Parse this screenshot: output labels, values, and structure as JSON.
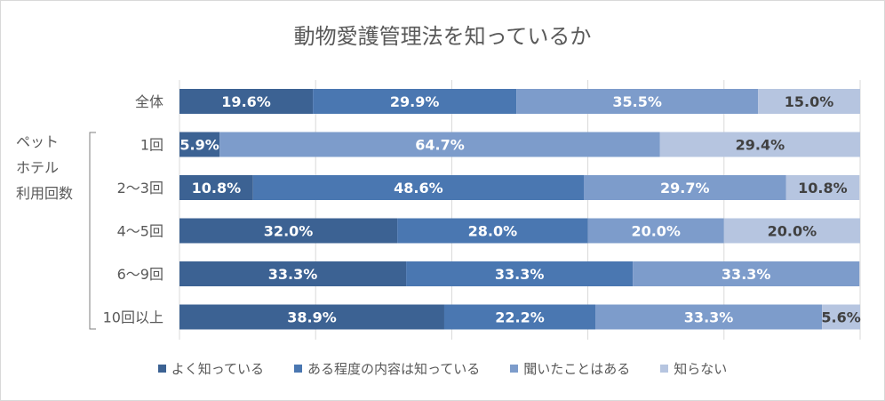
{
  "chart_data": {
    "type": "bar",
    "orientation": "horizontal",
    "stacked": "percent",
    "title": "動物愛護管理法を知っているか",
    "categories": [
      "全体",
      "1回",
      "2〜3回",
      "4〜5回",
      "6〜9回",
      "10回以上"
    ],
    "group_label": [
      "ペット",
      "ホテル",
      "利用回数"
    ],
    "series": [
      {
        "name": "よく知っている",
        "color": "#3c6293",
        "values": [
          19.6,
          5.9,
          10.8,
          32.0,
          33.3,
          38.9
        ],
        "labels": [
          "19.6%",
          "5.9%",
          "10.8%",
          "32.0%",
          "33.3%",
          "38.9%"
        ]
      },
      {
        "name": "ある程度の内容は知っている",
        "color": "#4a77b1",
        "values": [
          29.9,
          0,
          48.6,
          28.0,
          33.3,
          22.2
        ],
        "labels": [
          "29.9%",
          "",
          "48.6%",
          "28.0%",
          "33.3%",
          "22.2%"
        ]
      },
      {
        "name": "聞いたことはある",
        "color": "#7d9ccb",
        "values": [
          35.5,
          64.7,
          29.7,
          20.0,
          33.3,
          33.3
        ],
        "labels": [
          "35.5%",
          "64.7%",
          "29.7%",
          "20.0%",
          "33.3%",
          "33.3%"
        ]
      },
      {
        "name": "知らない",
        "color": "#b6c5e0",
        "values": [
          15.0,
          29.4,
          10.8,
          20.0,
          0,
          5.6
        ],
        "labels": [
          "15.0%",
          "29.4%",
          "10.8%",
          "20.0%",
          "",
          "5.6%"
        ]
      }
    ],
    "xlim": [
      0,
      100
    ],
    "grid": true,
    "legend_position": "bottom"
  }
}
